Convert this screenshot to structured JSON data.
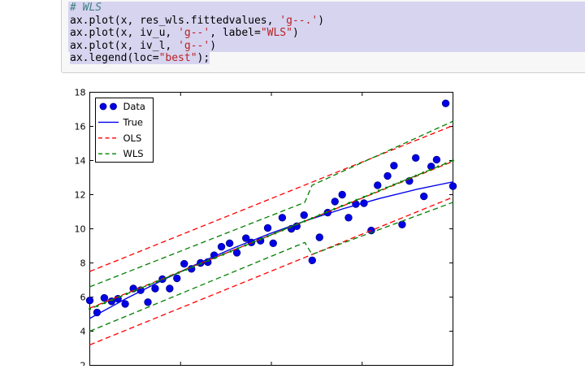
{
  "notebook": {
    "code_cell": {
      "language": "python",
      "colors": {
        "background": "#f7f7f7",
        "border": "#cfcfcf",
        "selection": "#d7d4f0",
        "comment": "#408080",
        "string": "#ba2121",
        "plain": "#000000"
      },
      "lines": [
        {
          "selected": "full",
          "tokens": [
            [
              "comment",
              "# WLS"
            ]
          ]
        },
        {
          "selected": "full",
          "tokens": [
            [
              "plain",
              "ax.plot(x, res_wls.fittedvalues, "
            ],
            [
              "string",
              "'g--.'"
            ],
            [
              "plain",
              ")"
            ]
          ]
        },
        {
          "selected": "full",
          "tokens": [
            [
              "plain",
              "ax.plot(x, iv_u, "
            ],
            [
              "string",
              "'g--'"
            ],
            [
              "plain",
              ", label="
            ],
            [
              "string",
              "\"WLS\""
            ],
            [
              "plain",
              ")"
            ]
          ]
        },
        {
          "selected": "full",
          "tokens": [
            [
              "plain",
              "ax.plot(x, iv_l, "
            ],
            [
              "string",
              "'g--'"
            ],
            [
              "plain",
              ")"
            ]
          ]
        },
        {
          "selected": "text",
          "tokens": [
            [
              "plain",
              "ax.legend(loc="
            ],
            [
              "string",
              "\"best\""
            ],
            [
              "plain",
              ");"
            ]
          ]
        }
      ]
    }
  },
  "chart_data": {
    "type": "scatter",
    "title": "",
    "xlabel": "",
    "ylabel": "",
    "xlim": [
      0,
      20
    ],
    "ylim": [
      2,
      18
    ],
    "xticks": [
      0,
      5,
      10,
      15,
      20
    ],
    "yticks": [
      2,
      4,
      6,
      8,
      10,
      12,
      14,
      16,
      18
    ],
    "ytick_labels": [
      "2",
      "4",
      "6",
      "8",
      "10",
      "12",
      "14",
      "16",
      "18"
    ],
    "xtick_labels_visible": false,
    "grid": false,
    "frame_color": "#000000",
    "legend": {
      "position": "upper left",
      "entries": [
        {
          "label": "Data",
          "marker": "dots",
          "color": "#0000e6"
        },
        {
          "label": "True",
          "marker": "line-solid",
          "color": "#0000ee"
        },
        {
          "label": "OLS",
          "marker": "line-dashed",
          "color": "#ff0000"
        },
        {
          "label": "WLS",
          "marker": "line-dashed",
          "color": "#008000"
        }
      ]
    },
    "series": [
      {
        "name": "Data",
        "type": "scatter",
        "color": "#0000e6",
        "edge_color": "#00008b",
        "x": [
          0.0,
          0.4,
          0.8,
          1.2,
          1.55,
          1.95,
          2.4,
          2.8,
          3.2,
          3.6,
          4.0,
          4.4,
          4.8,
          5.2,
          5.6,
          6.1,
          6.5,
          6.85,
          7.25,
          7.7,
          8.1,
          8.6,
          8.9,
          9.4,
          9.8,
          10.1,
          10.6,
          11.1,
          11.4,
          11.8,
          12.25,
          12.65,
          13.1,
          13.5,
          13.9,
          14.25,
          14.65,
          15.1,
          15.5,
          15.85,
          16.4,
          16.75,
          17.2,
          17.6,
          17.95,
          18.4,
          18.8,
          19.1,
          19.6,
          20.0
        ],
        "y": [
          5.8,
          5.1,
          5.95,
          5.75,
          5.9,
          5.6,
          6.5,
          6.4,
          5.7,
          6.5,
          7.05,
          6.5,
          7.1,
          7.95,
          7.65,
          8.0,
          8.05,
          8.45,
          8.95,
          9.15,
          8.6,
          9.45,
          9.2,
          9.3,
          10.05,
          9.15,
          10.65,
          10.0,
          10.15,
          10.8,
          8.15,
          9.5,
          10.95,
          11.6,
          12.0,
          10.65,
          11.45,
          11.5,
          9.9,
          12.55,
          13.1,
          13.7,
          10.25,
          12.8,
          14.15,
          11.9,
          13.65,
          14.05,
          17.35,
          12.5
        ]
      },
      {
        "name": "True",
        "type": "line",
        "style": "solid",
        "color": "#0000ee",
        "width": 1.4,
        "x": [
          0,
          2,
          4,
          6,
          8,
          10,
          12,
          14,
          16,
          18,
          20
        ],
        "y": [
          4.75,
          5.91,
          6.99,
          7.99,
          8.91,
          9.75,
          10.51,
          11.19,
          11.79,
          12.31,
          12.75
        ]
      },
      {
        "name": "OLS fitted",
        "type": "line",
        "style": "dashed",
        "color": "#ff0000",
        "width": 1.3,
        "x": [
          0,
          20
        ],
        "y": [
          5.35,
          13.95
        ]
      },
      {
        "name": "OLS upper",
        "type": "line",
        "style": "dashed",
        "color": "#ff0000",
        "width": 1.3,
        "x": [
          0,
          20
        ],
        "y": [
          7.5,
          16.05
        ]
      },
      {
        "name": "OLS lower",
        "type": "line",
        "style": "dashed",
        "color": "#ff0000",
        "width": 1.3,
        "x": [
          0,
          20
        ],
        "y": [
          3.2,
          11.85
        ]
      },
      {
        "name": "WLS fitted",
        "type": "line",
        "style": "dashed",
        "color": "#008000",
        "width": 1.3,
        "marker_dots": true,
        "dash_offset": 5,
        "x": [
          0,
          20
        ],
        "y": [
          5.3,
          14.0
        ]
      },
      {
        "name": "WLS upper",
        "type": "line",
        "style": "dashed",
        "color": "#008000",
        "width": 1.3,
        "x": [
          0,
          11.84,
          12.24,
          20
        ],
        "y": [
          6.6,
          11.55,
          12.55,
          16.3
        ]
      },
      {
        "name": "WLS lower",
        "type": "line",
        "style": "dashed",
        "color": "#008000",
        "width": 1.3,
        "x": [
          0,
          11.84,
          12.24,
          20
        ],
        "y": [
          4.0,
          9.2,
          8.5,
          11.55
        ]
      }
    ]
  }
}
